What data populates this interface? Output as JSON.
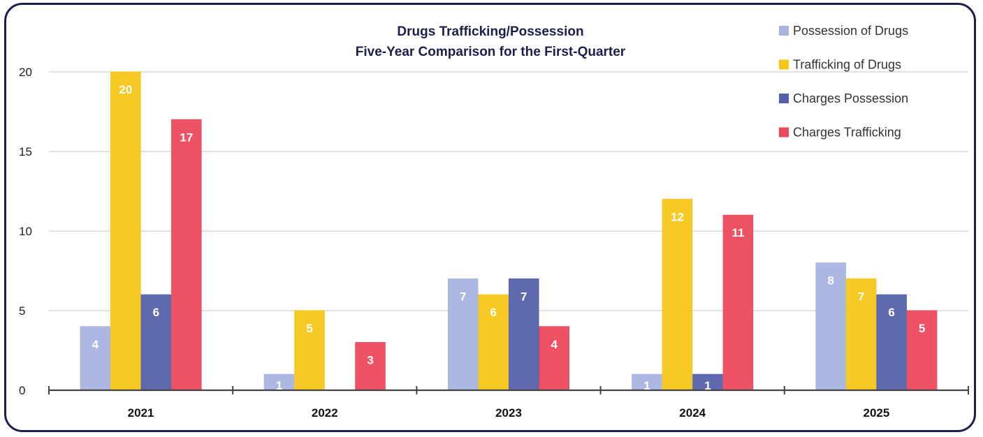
{
  "chart_data": {
    "type": "bar",
    "title_lines": [
      "Drugs Trafficking/Possession",
      "Five-Year Comparison for the First-Quarter"
    ],
    "categories": [
      "2021",
      "2022",
      "2023",
      "2024",
      "2025"
    ],
    "series": [
      {
        "name": "Possession of Drugs",
        "color": "#a9b4e0",
        "values": [
          4,
          1,
          7,
          1,
          8
        ]
      },
      {
        "name": "Trafficking of Drugs",
        "color": "#f7c618",
        "values": [
          20,
          5,
          6,
          12,
          7
        ]
      },
      {
        "name": "Charges Possession",
        "color": "#5561aa",
        "values": [
          6,
          0,
          7,
          1,
          6
        ]
      },
      {
        "name": "Charges Trafficking",
        "color": "#ec4a5c",
        "values": [
          17,
          3,
          4,
          11,
          5
        ]
      }
    ],
    "ylim": [
      0,
      20
    ],
    "yticks": [
      0,
      5,
      10,
      15,
      20
    ],
    "grid": true,
    "legend": "top-right",
    "data_labels": true
  }
}
